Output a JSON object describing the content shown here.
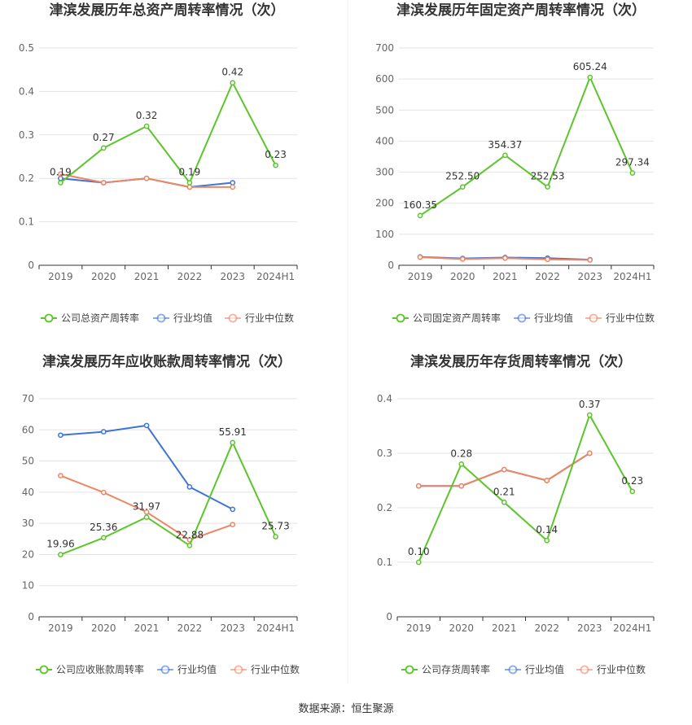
{
  "source": "数据来源：恒生聚源",
  "colors": {
    "company": "#5cc52c",
    "average": "#3d74d9",
    "median": "#ef8563",
    "grid": "#e3e3e3",
    "axis": "#333333",
    "divider": "#eeeeee"
  },
  "chart_data": [
    {
      "type": "line",
      "title": "津滨发展历年总资产周转率情况（次）",
      "categories": [
        "2019",
        "2020",
        "2021",
        "2022",
        "2023",
        "2024H1"
      ],
      "ylim": [
        0,
        0.5
      ],
      "yticks": [
        "0",
        "0.1",
        "0.2",
        "0.3",
        "0.4",
        "0.5"
      ],
      "ytick_values": [
        0,
        0.1,
        0.2,
        0.3,
        0.4,
        0.5
      ],
      "grid": true,
      "legend_position": "bottom",
      "series": [
        {
          "name": "公司总资产周转率",
          "role": "company",
          "values": [
            0.19,
            0.27,
            0.32,
            0.19,
            0.42,
            0.23
          ],
          "labels": [
            "0.19",
            "0.27",
            "0.32",
            "0.19",
            "0.42",
            "0.23"
          ]
        },
        {
          "name": "行业均值",
          "role": "average",
          "values": [
            0.2,
            0.19,
            0.2,
            0.18,
            0.19,
            null
          ]
        },
        {
          "name": "行业中位数",
          "role": "median",
          "values": [
            0.21,
            0.19,
            0.2,
            0.18,
            0.18,
            null
          ]
        }
      ]
    },
    {
      "type": "line",
      "title": "津滨发展历年固定资产周转率情况（次）",
      "categories": [
        "2019",
        "2020",
        "2021",
        "2022",
        "2023",
        "2024H1"
      ],
      "ylim": [
        0,
        700
      ],
      "yticks": [
        "0",
        "100",
        "200",
        "300",
        "400",
        "500",
        "600",
        "700"
      ],
      "ytick_values": [
        0,
        100,
        200,
        300,
        400,
        500,
        600,
        700
      ],
      "grid": true,
      "legend_position": "bottom",
      "series": [
        {
          "name": "公司固定资产周转率",
          "role": "company",
          "values": [
            160.35,
            252.5,
            354.37,
            252.53,
            605.24,
            297.34
          ],
          "labels": [
            "160.35",
            "252.50",
            "354.37",
            "252.53",
            "605.24",
            "297.34"
          ]
        },
        {
          "name": "行业均值",
          "role": "average",
          "values": [
            27,
            22,
            25,
            23,
            18,
            null
          ]
        },
        {
          "name": "行业中位数",
          "role": "median",
          "values": [
            26,
            20,
            23,
            19,
            17,
            null
          ]
        }
      ]
    },
    {
      "type": "line",
      "title": "津滨发展历年应收账款周转率情况（次）",
      "categories": [
        "2019",
        "2020",
        "2021",
        "2022",
        "2023",
        "2024H1"
      ],
      "ylim": [
        0,
        70
      ],
      "yticks": [
        "0",
        "10",
        "20",
        "30",
        "40",
        "50",
        "60",
        "70"
      ],
      "ytick_values": [
        0,
        10,
        20,
        30,
        40,
        50,
        60,
        70
      ],
      "grid": true,
      "legend_position": "bottom",
      "series": [
        {
          "name": "公司应收账款周转率",
          "role": "company",
          "values": [
            19.96,
            25.36,
            31.97,
            22.88,
            55.91,
            25.73
          ],
          "labels": [
            "19.96",
            "25.36",
            "31.97",
            "22.88",
            "55.91",
            "25.73"
          ]
        },
        {
          "name": "行业均值",
          "role": "average",
          "values": [
            58.3,
            59.4,
            61.4,
            41.7,
            34.5,
            null
          ]
        },
        {
          "name": "行业中位数",
          "role": "median",
          "values": [
            45.3,
            39.9,
            33.6,
            24.7,
            29.6,
            null
          ]
        }
      ]
    },
    {
      "type": "line",
      "title": "津滨发展历年存货周转率情况（次）",
      "categories": [
        "2019",
        "2020",
        "2021",
        "2022",
        "2023",
        "2024H1"
      ],
      "ylim": [
        0,
        0.4
      ],
      "yticks": [
        "0",
        "0.1",
        "0.2",
        "0.3",
        "0.4"
      ],
      "ytick_values": [
        0,
        0.1,
        0.2,
        0.3,
        0.4
      ],
      "grid": true,
      "legend_position": "bottom",
      "series": [
        {
          "name": "公司存货周转率",
          "role": "company",
          "values": [
            0.1,
            0.28,
            0.21,
            0.14,
            0.37,
            0.23
          ],
          "labels": [
            "0.10",
            "0.28",
            "0.21",
            "0.14",
            "0.37",
            "0.23"
          ]
        },
        {
          "name": "行业均值",
          "role": "average",
          "values": [
            0.24,
            0.24,
            0.27,
            0.25,
            0.3,
            null
          ]
        },
        {
          "name": "行业中位数",
          "role": "median",
          "values": [
            0.24,
            0.24,
            0.27,
            0.25,
            0.3,
            null
          ]
        }
      ]
    }
  ]
}
